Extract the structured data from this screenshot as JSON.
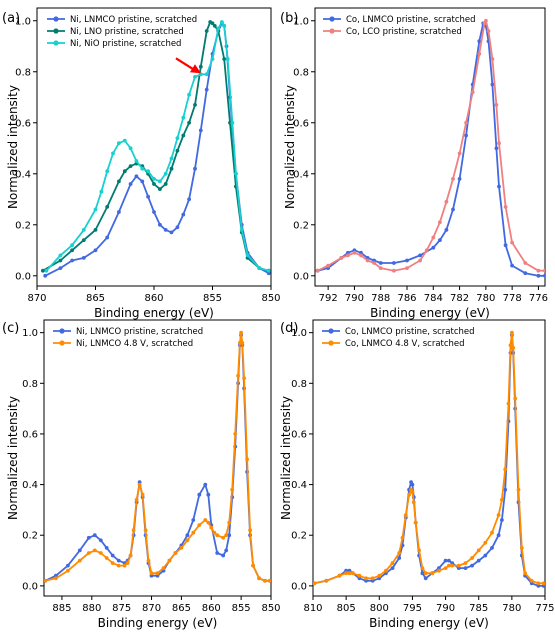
{
  "colors": {
    "ni_lnmco_pristine": "#4169e1",
    "ni_lno_pristine": "#007b70",
    "ni_nio_pristine": "#17d0cf",
    "co_lnmco_pristine": "#4169e1",
    "co_lco_pristine": "#f08080",
    "lnmco_48v": "#ff8c00",
    "arrow": "#ff0000"
  },
  "chart_data": [
    {
      "panel_label": "(a)",
      "type": "line",
      "xlabel": "Binding energy (eV)",
      "ylabel": "Normalized intensity",
      "xlim": [
        870,
        850
      ],
      "ylim": [
        -0.04,
        1.05
      ],
      "xticks": [
        870,
        865,
        860,
        855,
        850
      ],
      "yticks": [
        0.0,
        0.2,
        0.4,
        0.6,
        0.8,
        1.0
      ],
      "legend_position": "top-left",
      "annotation": "arrow pointing to the NiO shoulder near 855.9 eV",
      "series": [
        {
          "name": "Ni, LNMCO pristine, scratched",
          "color": "#4169e1",
          "x": [
            869.3,
            868,
            867,
            866,
            865,
            864,
            863,
            862,
            861.5,
            861,
            860.5,
            860,
            859.5,
            859,
            858.5,
            858,
            857.5,
            857,
            856.5,
            856,
            855.5,
            855,
            854.5,
            854.2,
            854,
            853.8,
            853.5,
            853,
            852.5,
            852,
            851,
            850.2
          ],
          "y": [
            0.0,
            0.03,
            0.06,
            0.07,
            0.1,
            0.15,
            0.25,
            0.36,
            0.39,
            0.37,
            0.31,
            0.25,
            0.2,
            0.18,
            0.17,
            0.19,
            0.24,
            0.3,
            0.42,
            0.57,
            0.73,
            0.87,
            0.96,
            0.99,
            0.98,
            0.9,
            0.7,
            0.4,
            0.2,
            0.09,
            0.03,
            0.01
          ]
        },
        {
          "name": "Ni, LNO pristine, scratched",
          "color": "#007b70",
          "x": [
            869.5,
            868,
            867,
            866,
            865,
            864,
            863,
            862.5,
            862,
            861.5,
            861,
            860.5,
            860,
            859.5,
            859,
            858.5,
            858,
            857.5,
            857,
            856.5,
            856,
            855.5,
            855.2,
            855,
            854.8,
            854.5,
            854,
            853.5,
            853,
            852.5,
            852,
            851,
            850.2
          ],
          "y": [
            0.02,
            0.06,
            0.1,
            0.14,
            0.18,
            0.27,
            0.37,
            0.41,
            0.43,
            0.44,
            0.43,
            0.4,
            0.36,
            0.34,
            0.36,
            0.42,
            0.49,
            0.55,
            0.6,
            0.67,
            0.82,
            0.96,
            0.995,
            0.99,
            0.98,
            0.96,
            0.85,
            0.6,
            0.35,
            0.17,
            0.07,
            0.03,
            0.02
          ]
        },
        {
          "name": "Ni, NiO pristine, scratched",
          "color": "#17d0cf",
          "x": [
            869.2,
            868,
            867,
            866,
            865,
            864.5,
            864,
            863.5,
            863,
            862.5,
            862,
            861.5,
            861,
            860.5,
            860,
            859.5,
            859,
            858.5,
            858,
            857.5,
            857,
            856.5,
            856,
            855.5,
            855,
            854.5,
            854.2,
            854,
            853.7,
            853.3,
            853,
            852.5,
            852,
            851,
            850.2
          ],
          "y": [
            0.02,
            0.08,
            0.12,
            0.18,
            0.26,
            0.33,
            0.41,
            0.48,
            0.52,
            0.53,
            0.5,
            0.45,
            0.42,
            0.41,
            0.38,
            0.37,
            0.4,
            0.46,
            0.54,
            0.62,
            0.71,
            0.78,
            0.79,
            0.79,
            0.85,
            0.97,
            0.995,
            0.98,
            0.85,
            0.6,
            0.4,
            0.18,
            0.08,
            0.03,
            0.02
          ]
        }
      ]
    },
    {
      "panel_label": "(b)",
      "type": "line",
      "xlabel": "Binding energy (eV)",
      "ylabel": "Normalized intensity",
      "xlim": [
        793,
        775.5
      ],
      "ylim": [
        -0.04,
        1.05
      ],
      "xticks": [
        792,
        790,
        788,
        786,
        784,
        782,
        780,
        778,
        776
      ],
      "yticks": [
        0.0,
        0.2,
        0.4,
        0.6,
        0.8,
        1.0
      ],
      "legend_position": "top-left",
      "series": [
        {
          "name": "Co, LNMCO pristine, scratched",
          "color": "#4169e1",
          "x": [
            792.8,
            792,
            791,
            790.5,
            790,
            789.5,
            789,
            788.5,
            788,
            787,
            786,
            785,
            784,
            783.5,
            783,
            782.5,
            782,
            781.5,
            781,
            780.5,
            780.2,
            780,
            779.8,
            779.5,
            779.2,
            779,
            778.5,
            778,
            777,
            776,
            775.5
          ],
          "y": [
            0.02,
            0.03,
            0.07,
            0.09,
            0.1,
            0.09,
            0.07,
            0.06,
            0.05,
            0.05,
            0.06,
            0.08,
            0.11,
            0.14,
            0.18,
            0.26,
            0.38,
            0.55,
            0.75,
            0.92,
            0.99,
            0.98,
            0.92,
            0.75,
            0.5,
            0.35,
            0.12,
            0.04,
            0.01,
            0.0,
            0.0
          ]
        },
        {
          "name": "Co, LCO pristine, scratched",
          "color": "#f08080",
          "x": [
            792.8,
            792,
            791,
            790.5,
            790,
            789.5,
            789,
            788.5,
            788,
            787,
            786,
            785,
            784.5,
            784,
            783.5,
            783,
            782.5,
            782,
            781.5,
            781,
            780.5,
            780.1,
            780,
            779.8,
            779.5,
            779.2,
            779,
            778.5,
            778,
            777,
            776,
            775.5
          ],
          "y": [
            0.02,
            0.04,
            0.07,
            0.08,
            0.09,
            0.08,
            0.06,
            0.05,
            0.03,
            0.02,
            0.03,
            0.06,
            0.1,
            0.15,
            0.21,
            0.29,
            0.38,
            0.48,
            0.6,
            0.72,
            0.87,
            0.99,
            1.0,
            0.96,
            0.85,
            0.67,
            0.52,
            0.27,
            0.13,
            0.05,
            0.02,
            0.02
          ]
        }
      ]
    },
    {
      "panel_label": "(c)",
      "type": "line",
      "xlabel": "Binding energy (eV)",
      "ylabel": "Normalized intensity",
      "xlim": [
        888,
        850
      ],
      "ylim": [
        -0.04,
        1.05
      ],
      "xticks": [
        885,
        880,
        875,
        870,
        865,
        860,
        855,
        850
      ],
      "yticks": [
        0.0,
        0.2,
        0.4,
        0.6,
        0.8,
        1.0
      ],
      "legend_position": "top-left",
      "series": [
        {
          "name": "Ni, LNMCO pristine, scratched",
          "color": "#4169e1",
          "x": [
            887.8,
            886,
            884,
            882,
            880.5,
            879.5,
            878.5,
            877.5,
            876.5,
            875.5,
            874.5,
            874,
            873.5,
            873,
            872.5,
            872,
            871.5,
            871,
            870.5,
            870,
            869,
            868,
            867,
            866,
            865,
            864,
            863,
            862,
            861,
            860.5,
            860,
            859,
            858,
            857.5,
            857,
            856.5,
            856,
            855.5,
            855.2,
            855,
            854.8,
            854.5,
            854,
            853.5,
            853,
            852,
            851,
            850.2
          ],
          "y": [
            0.02,
            0.04,
            0.08,
            0.14,
            0.19,
            0.2,
            0.18,
            0.15,
            0.12,
            0.1,
            0.09,
            0.1,
            0.12,
            0.2,
            0.33,
            0.41,
            0.35,
            0.2,
            0.09,
            0.04,
            0.04,
            0.06,
            0.1,
            0.13,
            0.16,
            0.2,
            0.26,
            0.36,
            0.4,
            0.36,
            0.24,
            0.13,
            0.12,
            0.14,
            0.2,
            0.35,
            0.55,
            0.8,
            0.95,
            0.99,
            0.95,
            0.78,
            0.45,
            0.2,
            0.08,
            0.03,
            0.02,
            0.02
          ]
        },
        {
          "name": "Ni, LNMCO 4.8 V, scratched",
          "color": "#ff8c00",
          "x": [
            887.8,
            886,
            884,
            882,
            880.5,
            879.5,
            878.5,
            877.5,
            876.5,
            875.5,
            874.5,
            874,
            873.5,
            873,
            872.5,
            872,
            871.5,
            871,
            870.5,
            870,
            869,
            868,
            867,
            866,
            865,
            864,
            863,
            862,
            861,
            860.5,
            860,
            859.5,
            859,
            858,
            857.5,
            857,
            856.5,
            856,
            855.5,
            855.2,
            855,
            854.8,
            854.5,
            854,
            853.5,
            853,
            852,
            851,
            850.2
          ],
          "y": [
            0.02,
            0.03,
            0.06,
            0.1,
            0.13,
            0.14,
            0.13,
            0.11,
            0.09,
            0.08,
            0.08,
            0.09,
            0.12,
            0.22,
            0.34,
            0.4,
            0.36,
            0.22,
            0.1,
            0.05,
            0.05,
            0.07,
            0.1,
            0.13,
            0.15,
            0.18,
            0.21,
            0.24,
            0.26,
            0.25,
            0.23,
            0.21,
            0.2,
            0.19,
            0.2,
            0.25,
            0.38,
            0.6,
            0.83,
            0.96,
            1.0,
            0.96,
            0.82,
            0.5,
            0.22,
            0.08,
            0.03,
            0.02,
            0.02
          ]
        }
      ]
    },
    {
      "panel_label": "(d)",
      "type": "line",
      "xlabel": "Binding energy (eV)",
      "ylabel": "Normalized intensity",
      "xlim": [
        810,
        775
      ],
      "ylim": [
        -0.04,
        1.05
      ],
      "xticks": [
        810,
        805,
        800,
        795,
        790,
        785,
        780,
        775
      ],
      "yticks": [
        0.0,
        0.2,
        0.4,
        0.6,
        0.8,
        1.0
      ],
      "legend_position": "top-left",
      "series": [
        {
          "name": "Co, LNMCO pristine, scratched",
          "color": "#4169e1",
          "x": [
            809.8,
            808,
            806,
            805,
            804.5,
            804,
            803,
            802,
            801,
            800,
            799,
            798,
            797,
            796.5,
            796,
            795.5,
            795.2,
            795,
            794.8,
            794.5,
            794,
            793.5,
            793,
            792,
            791,
            790,
            789.5,
            789,
            788,
            787,
            786,
            785,
            784,
            783,
            782,
            781.5,
            781,
            780.5,
            780.2,
            780,
            779.8,
            779.5,
            779,
            778.5,
            778,
            777,
            776,
            775.2
          ],
          "y": [
            0.01,
            0.02,
            0.04,
            0.06,
            0.06,
            0.05,
            0.03,
            0.02,
            0.02,
            0.03,
            0.05,
            0.07,
            0.11,
            0.16,
            0.27,
            0.38,
            0.41,
            0.4,
            0.35,
            0.25,
            0.12,
            0.05,
            0.03,
            0.05,
            0.07,
            0.1,
            0.1,
            0.09,
            0.07,
            0.07,
            0.08,
            0.1,
            0.12,
            0.15,
            0.2,
            0.26,
            0.38,
            0.65,
            0.92,
            0.99,
            0.92,
            0.7,
            0.33,
            0.12,
            0.04,
            0.01,
            0.0,
            0.0
          ]
        },
        {
          "name": "Co, LNMCO 4.8 V, scratched",
          "color": "#ff8c00",
          "x": [
            809.8,
            808,
            806,
            805,
            804.5,
            804,
            803,
            802,
            801,
            800,
            799,
            798,
            797,
            796.5,
            796,
            795.5,
            795.2,
            795,
            794.8,
            794.5,
            794,
            793.5,
            793,
            792,
            791,
            790,
            789.5,
            789,
            788,
            787,
            786,
            785,
            784,
            783,
            782,
            781.5,
            781,
            780.5,
            780.2,
            780,
            779.8,
            779.5,
            779,
            778.5,
            778,
            777,
            776,
            775.2
          ],
          "y": [
            0.01,
            0.02,
            0.04,
            0.05,
            0.05,
            0.05,
            0.04,
            0.03,
            0.03,
            0.04,
            0.06,
            0.09,
            0.13,
            0.19,
            0.28,
            0.36,
            0.38,
            0.37,
            0.33,
            0.25,
            0.14,
            0.07,
            0.05,
            0.05,
            0.06,
            0.07,
            0.08,
            0.08,
            0.08,
            0.09,
            0.11,
            0.14,
            0.17,
            0.21,
            0.28,
            0.34,
            0.46,
            0.72,
            0.95,
            1.0,
            0.94,
            0.74,
            0.38,
            0.15,
            0.05,
            0.02,
            0.01,
            0.01
          ]
        }
      ]
    }
  ]
}
